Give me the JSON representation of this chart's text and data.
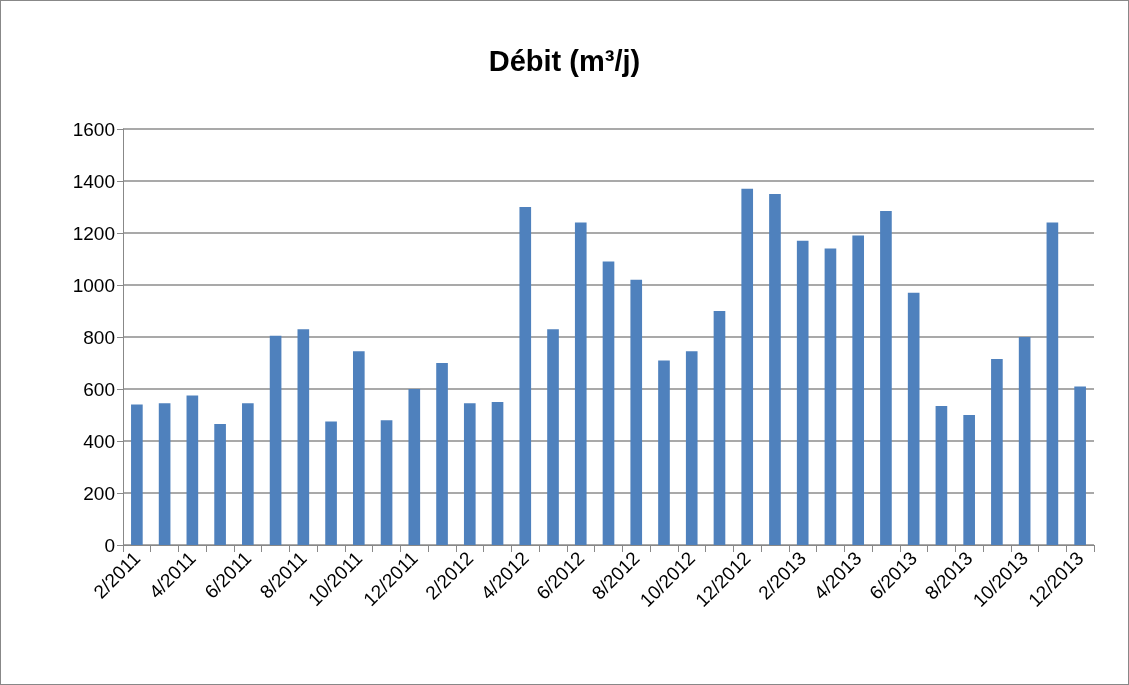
{
  "chart_data": {
    "type": "bar",
    "title": "Débit (m³/j)",
    "categories": [
      "2/2011",
      null,
      "4/2011",
      null,
      "6/2011",
      null,
      "8/2011",
      null,
      "10/2011",
      null,
      "12/2011",
      null,
      "2/2012",
      null,
      "4/2012",
      null,
      "6/2012",
      null,
      "8/2012",
      null,
      "10/2012",
      null,
      "12/2012",
      null,
      "2/2013",
      null,
      "4/2013",
      null,
      "6/2013",
      null,
      "8/2013",
      null,
      "10/2013",
      null,
      "12/2013"
    ],
    "values": [
      540,
      545,
      575,
      465,
      545,
      805,
      830,
      475,
      745,
      480,
      600,
      700,
      545,
      550,
      1300,
      830,
      1240,
      1090,
      1020,
      710,
      745,
      900,
      1370,
      1350,
      1170,
      1140,
      1190,
      1285,
      970,
      535,
      500,
      715,
      800,
      1240,
      610
    ],
    "color": "#4f81bd",
    "ylim": [
      0,
      1600
    ],
    "yticks": [
      0,
      200,
      400,
      600,
      800,
      1000,
      1200,
      1400,
      1600
    ],
    "grid": "y"
  }
}
